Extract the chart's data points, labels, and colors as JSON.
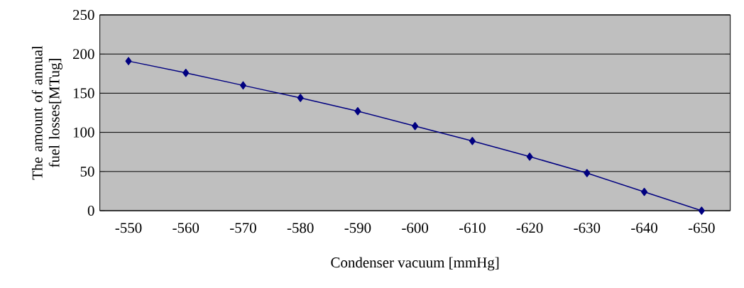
{
  "chart_data": {
    "type": "line",
    "xlabel": "Condenser vacuum [mmHg]",
    "ylabel": "The amount of annual fuel  losses[MTug]",
    "categories": [
      "-550",
      "-560",
      "-570",
      "-580",
      "-590",
      "-600",
      "-610",
      "-620",
      "-630",
      "-640",
      "-650"
    ],
    "series": [
      {
        "color": "#000080",
        "values": [
          191,
          176,
          160,
          144,
          127,
          108,
          89,
          69,
          48,
          24,
          0
        ]
      }
    ],
    "ylim": [
      0,
      250
    ],
    "yticks": [
      0,
      50,
      100,
      150,
      200,
      250
    ],
    "grid": "y",
    "marker": "diamond",
    "line_style": "solid"
  }
}
